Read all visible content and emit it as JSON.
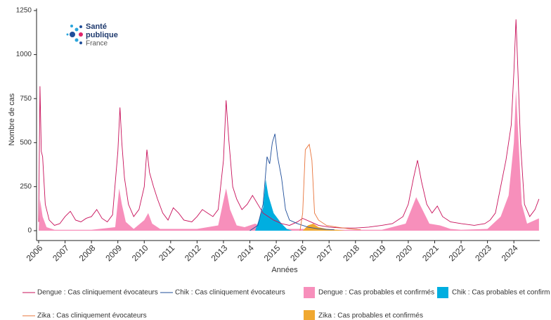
{
  "chart_data": {
    "type": "line",
    "y_label": "Nombre de cas",
    "x_label": "Années",
    "logo": {
      "line1": "Santé",
      "line2": "publique",
      "line3": "France"
    },
    "xlim": [
      2005.92,
      2024.98
    ],
    "ylim": [
      -56,
      1262
    ],
    "xticks": [
      2006,
      2007,
      2008,
      2009,
      2010,
      2011,
      2012,
      2013,
      2014,
      2015,
      2016,
      2017,
      2018,
      2019,
      2020,
      2021,
      2022,
      2023,
      2024
    ],
    "yticks": [
      0,
      250,
      500,
      750,
      1000,
      1250
    ],
    "series": [
      {
        "name": "Dengue : Cas cliniquement évocateurs",
        "color": "#c8105a",
        "style": "line",
        "x": [
          2006.0,
          2006.05,
          2006.1,
          2006.15,
          2006.25,
          2006.4,
          2006.6,
          2006.8,
          2007.0,
          2007.2,
          2007.4,
          2007.6,
          2007.8,
          2008.0,
          2008.2,
          2008.4,
          2008.6,
          2008.8,
          2009.0,
          2009.08,
          2009.15,
          2009.25,
          2009.4,
          2009.6,
          2009.8,
          2010.0,
          2010.1,
          2010.2,
          2010.35,
          2010.5,
          2010.7,
          2010.9,
          2011.1,
          2011.3,
          2011.5,
          2011.8,
          2012.0,
          2012.2,
          2012.4,
          2012.6,
          2012.8,
          2013.0,
          2013.1,
          2013.2,
          2013.35,
          2013.5,
          2013.7,
          2013.9,
          2014.1,
          2014.3,
          2014.5,
          2014.7,
          2014.9,
          2015.2,
          2015.5,
          2015.8,
          2016.0,
          2016.3,
          2016.6,
          2017.0,
          2017.5,
          2018.0,
          2018.5,
          2019.0,
          2019.4,
          2019.8,
          2020.0,
          2020.2,
          2020.35,
          2020.5,
          2020.7,
          2020.9,
          2021.1,
          2021.3,
          2021.6,
          2022.0,
          2022.5,
          2022.9,
          2023.1,
          2023.3,
          2023.5,
          2023.7,
          2023.9,
          2024.0,
          2024.08,
          2024.15,
          2024.25,
          2024.4,
          2024.6,
          2024.8,
          2024.95
        ],
        "values": [
          50,
          820,
          450,
          420,
          150,
          60,
          30,
          40,
          80,
          110,
          60,
          50,
          70,
          80,
          120,
          70,
          50,
          90,
          450,
          700,
          500,
          300,
          150,
          80,
          120,
          250,
          460,
          330,
          250,
          180,
          100,
          60,
          130,
          100,
          60,
          50,
          80,
          120,
          100,
          80,
          120,
          400,
          740,
          520,
          250,
          180,
          120,
          150,
          200,
          150,
          100,
          80,
          60,
          40,
          30,
          50,
          70,
          50,
          30,
          20,
          15,
          15,
          20,
          30,
          40,
          80,
          150,
          300,
          400,
          280,
          150,
          100,
          140,
          80,
          50,
          40,
          30,
          40,
          60,
          100,
          250,
          400,
          600,
          900,
          1200,
          920,
          500,
          150,
          80,
          120,
          180
        ]
      },
      {
        "name": "Chik : Cas cliniquement évocateurs",
        "color": "#1f4e9a",
        "style": "line",
        "x": [
          2014.0,
          2014.3,
          2014.5,
          2014.65,
          2014.75,
          2014.85,
          2014.95,
          2015.05,
          2015.2,
          2015.35,
          2015.5,
          2015.8,
          2016.2,
          2016.6,
          2017.2
        ],
        "values": [
          0,
          30,
          150,
          420,
          380,
          500,
          550,
          420,
          300,
          120,
          60,
          40,
          20,
          10,
          5
        ]
      },
      {
        "name": "Dengue : Cas probables et confirmés",
        "color": "#f78fbb",
        "style": "area",
        "x": [
          2006.0,
          2006.05,
          2006.15,
          2006.3,
          2006.6,
          2007.0,
          2008.0,
          2008.9,
          2009.05,
          2009.15,
          2009.3,
          2009.6,
          2010.0,
          2010.15,
          2010.3,
          2010.6,
          2011.0,
          2012.0,
          2012.8,
          2013.1,
          2013.25,
          2013.5,
          2013.8,
          2014.2,
          2014.5,
          2015.0,
          2016.0,
          2017.0,
          2019.0,
          2019.9,
          2020.3,
          2020.5,
          2020.8,
          2021.2,
          2021.6,
          2022.0,
          2023.0,
          2023.5,
          2023.8,
          2024.0,
          2024.08,
          2024.18,
          2024.3,
          2024.5,
          2024.8,
          2024.95
        ],
        "values": [
          0,
          180,
          80,
          20,
          5,
          5,
          5,
          20,
          240,
          150,
          50,
          10,
          60,
          100,
          40,
          10,
          10,
          10,
          30,
          240,
          120,
          30,
          20,
          40,
          20,
          10,
          10,
          5,
          5,
          40,
          190,
          130,
          40,
          30,
          10,
          5,
          10,
          80,
          200,
          500,
          800,
          500,
          150,
          40,
          60,
          70
        ]
      },
      {
        "name": "Chik : Cas probables et confirm",
        "color": "#00aee0",
        "style": "area",
        "x": [
          2014.2,
          2014.5,
          2014.6,
          2014.7,
          2014.8,
          2014.9,
          2015.0,
          2015.2,
          2015.4,
          2015.6
        ],
        "values": [
          0,
          130,
          290,
          200,
          150,
          100,
          80,
          40,
          10,
          0
        ]
      },
      {
        "name": "Zika : Cas cliniquement évocateurs",
        "color": "#e8743b",
        "style": "line",
        "x": [
          2015.9,
          2016.0,
          2016.1,
          2016.25,
          2016.35,
          2016.45,
          2016.6,
          2016.9,
          2017.3,
          2017.8,
          2018.2
        ],
        "values": [
          0,
          100,
          460,
          490,
          400,
          100,
          60,
          30,
          20,
          10,
          5
        ]
      },
      {
        "name": "Zika : Cas probables et confirmés",
        "color": "#f0a830",
        "style": "area",
        "x": [
          2016.0,
          2016.2,
          2016.4,
          2016.6,
          2016.9,
          2017.3,
          2017.6
        ],
        "values": [
          0,
          30,
          40,
          20,
          10,
          5,
          0
        ]
      }
    ]
  }
}
